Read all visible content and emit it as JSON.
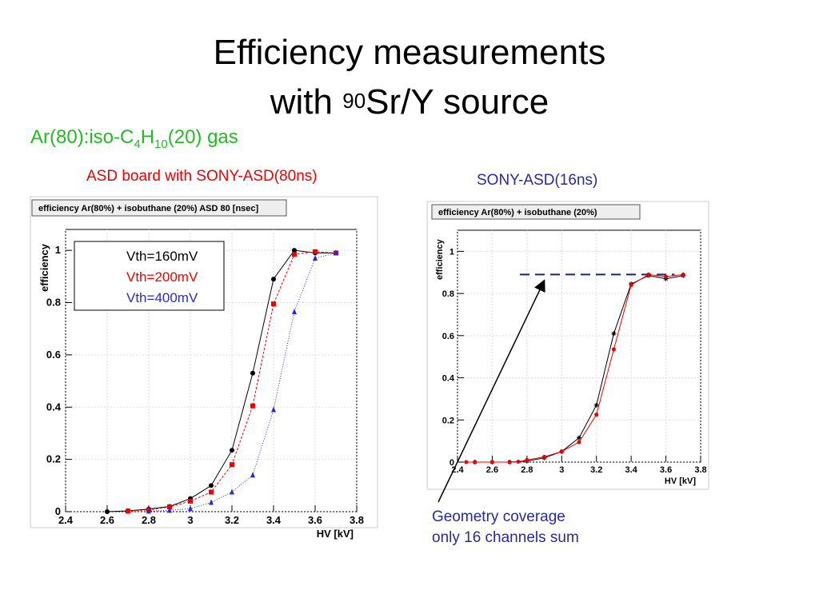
{
  "title": {
    "line1": "Efficiency measurements",
    "line2_pre": "with ",
    "line2_sup": "90",
    "line2_post": "Sr/Y source"
  },
  "gas_label": {
    "pre": "Ar(80):iso-C",
    "sub1": "4",
    "mid": "H",
    "sub2": "10",
    "post": "(20) gas"
  },
  "captions": {
    "left": "ASD board with SONY-ASD(80ns)",
    "right": "SONY-ASD(16ns)"
  },
  "note": {
    "line1": "Geometry coverage",
    "line2": "only 16 channels sum"
  },
  "colors": {
    "title_green": "#22bb22",
    "caption_red": "#ee0000",
    "caption_blue": "#2a2a9a"
  },
  "chart_data": [
    {
      "type": "line",
      "title": "efficiency Ar(80%) + isobuthane (20%) ASD 80 [nsec]",
      "xlabel": "HV [kV]",
      "ylabel": "efficiency",
      "xlim": [
        2.4,
        3.8
      ],
      "ylim": [
        0,
        1.08
      ],
      "xticks": [
        "2.4",
        "2.6",
        "2.8",
        "3",
        "3.2",
        "3.4",
        "3.6",
        "3.8"
      ],
      "yticks": [
        "0",
        "0.2",
        "0.4",
        "0.6",
        "0.8",
        "1"
      ],
      "grid": true,
      "legend": "top-left",
      "series": [
        {
          "name": "Vth=160mV",
          "color": "#000000",
          "marker": "circle",
          "x": [
            2.6,
            2.7,
            2.8,
            2.9,
            3.0,
            3.1,
            3.2,
            3.3,
            3.4,
            3.5,
            3.6,
            3.7
          ],
          "y": [
            0.0,
            0.003,
            0.01,
            0.02,
            0.05,
            0.1,
            0.235,
            0.53,
            0.89,
            1.0,
            0.99,
            0.99
          ]
        },
        {
          "name": "Vth=200mV",
          "color": "#ee0000",
          "marker": "square",
          "x": [
            2.7,
            2.8,
            2.9,
            3.0,
            3.1,
            3.2,
            3.3,
            3.4,
            3.5,
            3.6,
            3.7
          ],
          "y": [
            0.002,
            0.007,
            0.018,
            0.04,
            0.075,
            0.18,
            0.405,
            0.795,
            0.985,
            0.995,
            0.99
          ]
        },
        {
          "name": "Vth=400mV",
          "color": "#2a2acc",
          "marker": "triangle",
          "x": [
            2.8,
            2.9,
            3.0,
            3.1,
            3.2,
            3.3,
            3.4,
            3.5,
            3.6,
            3.7
          ],
          "y": [
            0.002,
            0.005,
            0.012,
            0.035,
            0.075,
            0.14,
            0.39,
            0.765,
            0.97,
            0.99
          ]
        }
      ]
    },
    {
      "type": "line",
      "title": "efficiency Ar(80%) + isobuthane (20%)",
      "xlabel": "HV [kV]",
      "ylabel": "efficiency",
      "xlim": [
        2.4,
        3.8
      ],
      "ylim": [
        0,
        1.1
      ],
      "xticks": [
        "2.4",
        "2.6",
        "2.8",
        "3",
        "3.2",
        "3.4",
        "3.6",
        "3.8"
      ],
      "yticks": [
        "0",
        "0.2",
        "0.4",
        "0.6",
        "0.8",
        "1"
      ],
      "grid": true,
      "reference_line": 0.89,
      "series": [
        {
          "color": "#000000",
          "marker": "star",
          "x": [
            2.5,
            2.6,
            2.7,
            2.8,
            2.9,
            3.0,
            3.1,
            3.2,
            3.3,
            3.4,
            3.5,
            3.6,
            3.7
          ],
          "y": [
            0.0,
            0.0,
            0.0,
            0.005,
            0.02,
            0.05,
            0.115,
            0.27,
            0.61,
            0.845,
            0.885,
            0.87,
            0.885
          ]
        },
        {
          "color": "#ee0000",
          "marker": "circle",
          "x": [
            2.45,
            2.5,
            2.6,
            2.7,
            2.75,
            2.8,
            2.9,
            3.0,
            3.1,
            3.2,
            3.3,
            3.4,
            3.5,
            3.6,
            3.7
          ],
          "y": [
            0.0,
            0.0,
            0.0,
            0.0,
            0.002,
            0.01,
            0.025,
            0.05,
            0.095,
            0.225,
            0.535,
            0.84,
            0.89,
            0.88,
            0.89
          ]
        }
      ]
    }
  ]
}
